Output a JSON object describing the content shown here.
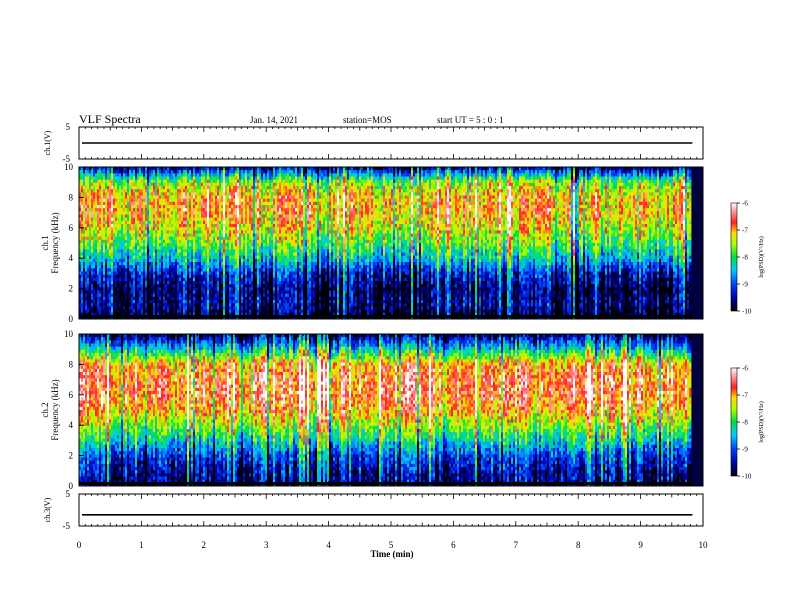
{
  "header": {
    "title": "VLF Spectra",
    "date": "Jan. 14, 2021",
    "station": "station=MOS",
    "start": "start UT =  5 : 0  : 1"
  },
  "chart_data": [
    {
      "type": "line",
      "panel": "waveform",
      "ylabel": "ch.1(V)",
      "yticks": [
        "5",
        "-5"
      ],
      "ylim": [
        -5,
        5
      ],
      "series": [
        {
          "values": [
            0,
            0,
            0
          ]
        }
      ]
    },
    {
      "type": "heatmap",
      "panel": "spectrogram",
      "ylabel": "ch.1",
      "ylabel2": "Frequency (kHz)",
      "yticks": [
        "0",
        "2",
        "4",
        "6",
        "8",
        "10"
      ],
      "ylim": [
        0,
        10
      ],
      "colorbar": {
        "label": "log(PSD)(V²/Hz)",
        "ticks": [
          "-6",
          "-7",
          "-8",
          "-9",
          "-10"
        ],
        "range": [
          -10,
          -6
        ]
      },
      "profile": {
        "freq_khz": [
          0,
          1,
          2,
          3,
          4,
          5,
          6,
          7,
          8,
          9,
          10
        ],
        "log_psd_typical": [
          -10,
          -9.6,
          -9.7,
          -9.3,
          -8.4,
          -7.8,
          -7.3,
          -7.0,
          -7.0,
          -7.6,
          -9.6
        ]
      }
    },
    {
      "type": "heatmap",
      "panel": "spectrogram",
      "ylabel": "ch.2",
      "ylabel2": "Frequency (kHz)",
      "yticks": [
        "0",
        "2",
        "4",
        "6",
        "8",
        "10"
      ],
      "ylim": [
        0,
        10
      ],
      "colorbar": {
        "label": "log(PSD)(V²/Hz)",
        "ticks": [
          "-6",
          "-7",
          "-8",
          "-9",
          "-10"
        ],
        "range": [
          -10,
          -6
        ]
      },
      "profile": {
        "freq_khz": [
          0,
          1,
          2,
          3,
          4,
          5,
          6,
          7,
          8,
          9,
          10
        ],
        "log_psd_typical": [
          -9.6,
          -9.4,
          -9.0,
          -8.2,
          -7.5,
          -6.9,
          -6.6,
          -6.6,
          -6.9,
          -8.3,
          -9.7
        ]
      }
    },
    {
      "type": "line",
      "panel": "waveform",
      "ylabel": "ch.3(V)",
      "yticks": [
        "5",
        "-5"
      ],
      "ylim": [
        -5,
        5
      ],
      "series": [
        {
          "values": [
            -1.5,
            -1.5,
            -1.5
          ]
        }
      ]
    }
  ],
  "xaxis": {
    "label": "Time (min)",
    "ticks": [
      "0",
      "1",
      "2",
      "3",
      "4",
      "5",
      "6",
      "7",
      "8",
      "9",
      "10"
    ],
    "xlim": [
      0,
      10
    ],
    "data_end_min": 9.83
  }
}
